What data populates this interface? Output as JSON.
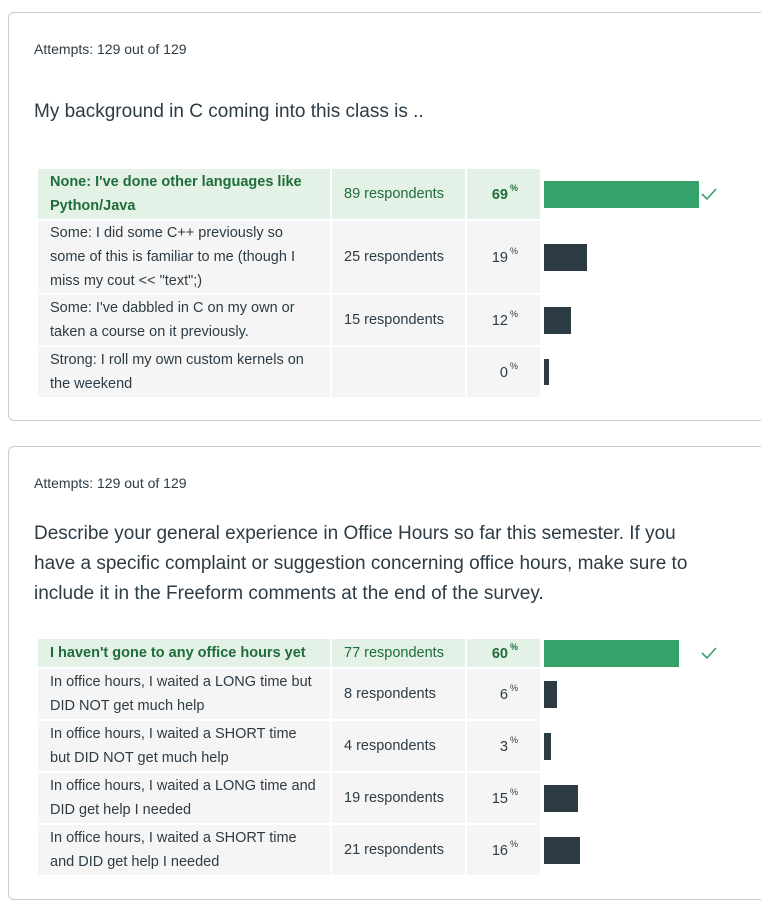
{
  "questions": [
    {
      "attempts": "Attempts: 129 out of 129",
      "text": "My background in C coming into this class is ..",
      "answers": [
        {
          "label": "None: I've done other languages like Python/Java",
          "respondents": "89 respondents",
          "percent": 69,
          "correct": true
        },
        {
          "label": "Some: I did some C++ previously so some of this is familiar to me (though I miss my cout << \"text\";)",
          "respondents": "25 respondents",
          "percent": 19,
          "correct": false
        },
        {
          "label": "Some: I've dabbled in C on my own or taken a course on it previously.",
          "respondents": "15 respondents",
          "percent": 12,
          "correct": false
        },
        {
          "label": "Strong: I roll my own custom kernels on the weekend",
          "respondents": "",
          "percent": 0,
          "correct": false
        }
      ]
    },
    {
      "attempts": "Attempts: 129 out of 129",
      "text": "Describe your general experience in Office Hours so far this semester. If you have a specific complaint or suggestion concerning office hours, make sure to include it in the Freeform comments at the end of the survey.",
      "answers": [
        {
          "label": "I haven't gone to any office hours yet",
          "respondents": "77 respondents",
          "percent": 60,
          "correct": true
        },
        {
          "label": "In office hours, I waited a LONG time but DID NOT get much help",
          "respondents": "8 respondents",
          "percent": 6,
          "correct": false
        },
        {
          "label": "In office hours, I waited a SHORT time but DID NOT get much help",
          "respondents": "4 respondents",
          "percent": 3,
          "correct": false
        },
        {
          "label": "In office hours, I waited a LONG time and DID get help I needed",
          "respondents": "19 respondents",
          "percent": 15,
          "correct": false
        },
        {
          "label": "In office hours, I waited a SHORT time and DID get help I needed",
          "respondents": "21 respondents",
          "percent": 16,
          "correct": false
        }
      ]
    }
  ],
  "percent_sign": "%",
  "icons": {
    "correct": "check-icon"
  },
  "colors": {
    "correct_bar": "#35a26a",
    "bar": "#2d3b45",
    "correct_row": "#e3f1e6"
  }
}
